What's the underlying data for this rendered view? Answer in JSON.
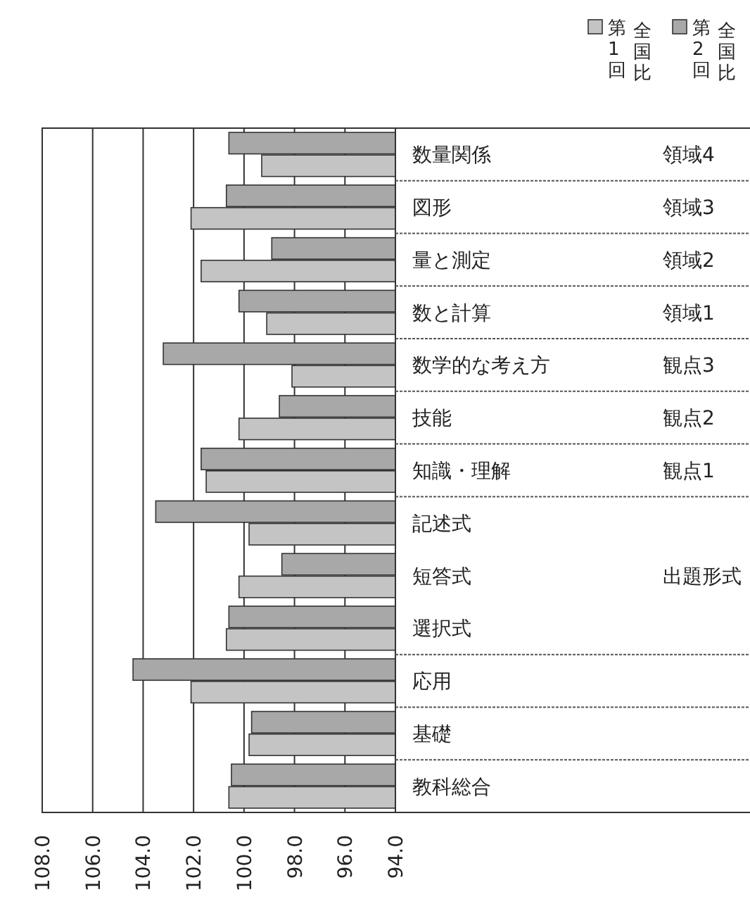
{
  "chart_data": {
    "type": "bar",
    "orientation": "horizontal",
    "categories": [
      "数量関係 領域4",
      "図形 領域3",
      "量と測定 領域2",
      "数と計算 領域1",
      "数学的な考え方 観点3",
      "技能 観点2",
      "知識・理解 観点1",
      "記述式",
      "短答式",
      "選択式",
      "応用",
      "基礎",
      "教科総合"
    ],
    "series": [
      {
        "name": "第2回全国比",
        "color": "#a8a8a8",
        "values": [
          100.6,
          100.7,
          98.9,
          100.2,
          103.2,
          98.6,
          101.7,
          103.5,
          98.5,
          100.6,
          104.4,
          99.7,
          100.5
        ]
      },
      {
        "name": "第1回全国比",
        "color": "#c4c4c4",
        "values": [
          99.3,
          102.1,
          101.7,
          99.1,
          98.1,
          100.2,
          101.5,
          99.8,
          100.2,
          100.7,
          102.1,
          99.8,
          100.6
        ]
      }
    ],
    "xlim": [
      108,
      94
    ],
    "xticks": [
      {
        "value": 108,
        "label": "108.0"
      },
      {
        "value": 106,
        "label": "106.0"
      },
      {
        "value": 104,
        "label": "104.0"
      },
      {
        "value": 102,
        "label": "102.0"
      },
      {
        "value": 100,
        "label": "100.0"
      },
      {
        "value": 98,
        "label": "98.0"
      },
      {
        "value": 96,
        "label": "96.0"
      },
      {
        "value": 94,
        "label": "94.0"
      }
    ],
    "grid": "x",
    "legend": "top right",
    "annotations": [
      "出題形式"
    ]
  }
}
